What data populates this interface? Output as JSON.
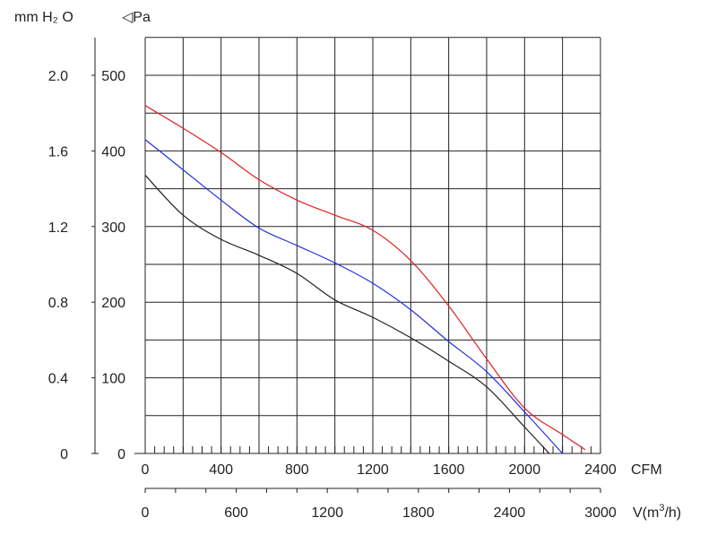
{
  "chart_data": {
    "type": "line",
    "title": "",
    "units": {
      "left_outer": "mm H₂ O",
      "left_inner": "◁Pa",
      "x_top": "CFM",
      "x_bottom_prefix": "V(m",
      "x_bottom_sup": "3",
      "x_bottom_suffix": "/h)"
    },
    "xlim_cfm": [
      0,
      2400
    ],
    "ylim_pa": [
      0,
      550
    ],
    "ytick_pa": [
      "0",
      "100",
      "200",
      "300",
      "400",
      "500"
    ],
    "ytick_pa_values": [
      0,
      100,
      200,
      300,
      400,
      500
    ],
    "ytick_mmh2o": [
      "0",
      "0.4",
      "0.8",
      "1.2",
      "1.6",
      "2.0"
    ],
    "ytick_mmh2o_values_pa": [
      0,
      100,
      200,
      300,
      400,
      500
    ],
    "xtick_cfm": [
      "0",
      "400",
      "800",
      "1200",
      "1600",
      "2000",
      "2400"
    ],
    "xtick_cfm_values": [
      0,
      400,
      800,
      1200,
      1600,
      2000,
      2400
    ],
    "xtick_m3h": [
      "0",
      "600",
      "1200",
      "1800",
      "2400",
      "3000"
    ],
    "xtick_m3h_values": [
      0,
      600,
      1200,
      1800,
      2400,
      3000
    ],
    "xlim_m3h": [
      0,
      3000
    ],
    "grid": true,
    "series": [
      {
        "name": "red",
        "color": "#e02020",
        "x": [
          0,
          200,
          400,
          600,
          800,
          1000,
          1200,
          1400,
          1600,
          1800,
          2000,
          2200,
          2320
        ],
        "y": [
          460,
          430,
          398,
          362,
          335,
          315,
          295,
          255,
          195,
          125,
          60,
          25,
          5
        ]
      },
      {
        "name": "blue",
        "color": "#2030e0",
        "x": [
          0,
          200,
          400,
          600,
          800,
          1000,
          1200,
          1400,
          1600,
          1800,
          2000,
          2200
        ],
        "y": [
          415,
          375,
          335,
          298,
          275,
          252,
          225,
          190,
          148,
          108,
          55,
          0
        ]
      },
      {
        "name": "black",
        "color": "#222222",
        "x": [
          0,
          200,
          400,
          600,
          800,
          1000,
          1200,
          1400,
          1600,
          1800,
          2000,
          2130
        ],
        "y": [
          368,
          315,
          283,
          262,
          238,
          203,
          180,
          153,
          122,
          88,
          35,
          0
        ]
      }
    ]
  }
}
